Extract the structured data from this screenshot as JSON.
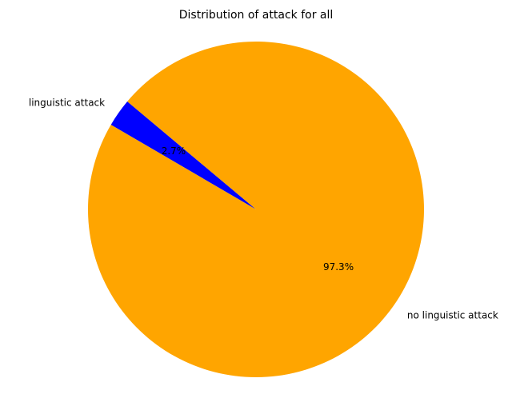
{
  "chart_data": {
    "type": "pie",
    "title": "Distribution of attack for all",
    "labels": [
      "linguistic attack",
      "no linguistic attack"
    ],
    "values": [
      2.7,
      97.3
    ],
    "autopct": [
      "2.7%",
      "97.3%"
    ],
    "colors": [
      "#0000ff",
      "#ffa500"
    ],
    "startangle": 140,
    "legend": "none"
  }
}
